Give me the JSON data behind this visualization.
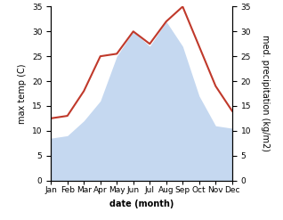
{
  "months": [
    "Jan",
    "Feb",
    "Mar",
    "Apr",
    "May",
    "Jun",
    "Jul",
    "Aug",
    "Sep",
    "Oct",
    "Nov",
    "Dec"
  ],
  "temperature": [
    12.5,
    13.0,
    18.0,
    25.0,
    25.5,
    30.0,
    27.5,
    32.0,
    35.0,
    27.0,
    19.0,
    14.0
  ],
  "precipitation": [
    8.5,
    9.0,
    12.0,
    16.0,
    25.0,
    30.0,
    27.0,
    32.0,
    27.0,
    17.0,
    11.0,
    10.5
  ],
  "temp_color": "#c0392b",
  "precip_color": "#c5d8f0",
  "background_color": "#ffffff",
  "ylabel_left": "max temp (C)",
  "ylabel_right": "med. precipitation (kg/m2)",
  "xlabel": "date (month)",
  "ylim": [
    0,
    35
  ],
  "yticks": [
    0,
    5,
    10,
    15,
    20,
    25,
    30,
    35
  ],
  "label_fontsize": 7,
  "tick_fontsize": 6.5
}
